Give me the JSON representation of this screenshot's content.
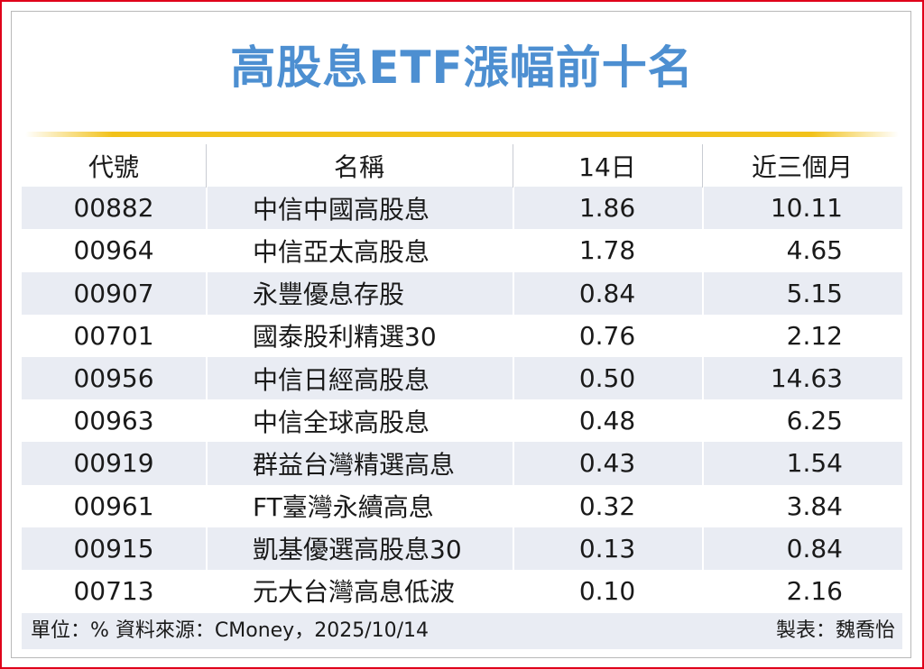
{
  "chart_data": {
    "type": "table",
    "title": "高股息ETF漲幅前十名",
    "columns": [
      "代號",
      "名稱",
      "14日",
      "近三個月"
    ],
    "rows": [
      {
        "code": "00882",
        "name": "中信中國高股息",
        "day14": "1.86",
        "three_month": "10.11"
      },
      {
        "code": "00964",
        "name": "中信亞太高股息",
        "day14": "1.78",
        "three_month": "4.65"
      },
      {
        "code": "00907",
        "name": "永豐優息存股",
        "day14": "0.84",
        "three_month": "5.15"
      },
      {
        "code": "00701",
        "name": "國泰股利精選30",
        "day14": "0.76",
        "three_month": "2.12"
      },
      {
        "code": "00956",
        "name": "中信日經高股息",
        "day14": "0.50",
        "three_month": "14.63"
      },
      {
        "code": "00963",
        "name": "中信全球高股息",
        "day14": "0.48",
        "three_month": "6.25"
      },
      {
        "code": "00919",
        "name": "群益台灣精選高息",
        "day14": "0.43",
        "three_month": "1.54"
      },
      {
        "code": "00961",
        "name": "FT臺灣永續高息",
        "day14": "0.32",
        "three_month": "3.84"
      },
      {
        "code": "00915",
        "name": "凱基優選高股息30",
        "day14": "0.13",
        "three_month": "0.84"
      },
      {
        "code": "00713",
        "name": "元大台灣高息低波",
        "day14": "0.10",
        "three_month": "2.16"
      }
    ],
    "source_note": "單位：%  資料來源：CMoney，2025/10/14",
    "maker_note": "製表：魏喬怡"
  },
  "colors": {
    "title": "#4d8fd1",
    "rule": "#f2c21a",
    "row_shade": "#e9ecf3",
    "frame": "#e0001a"
  }
}
